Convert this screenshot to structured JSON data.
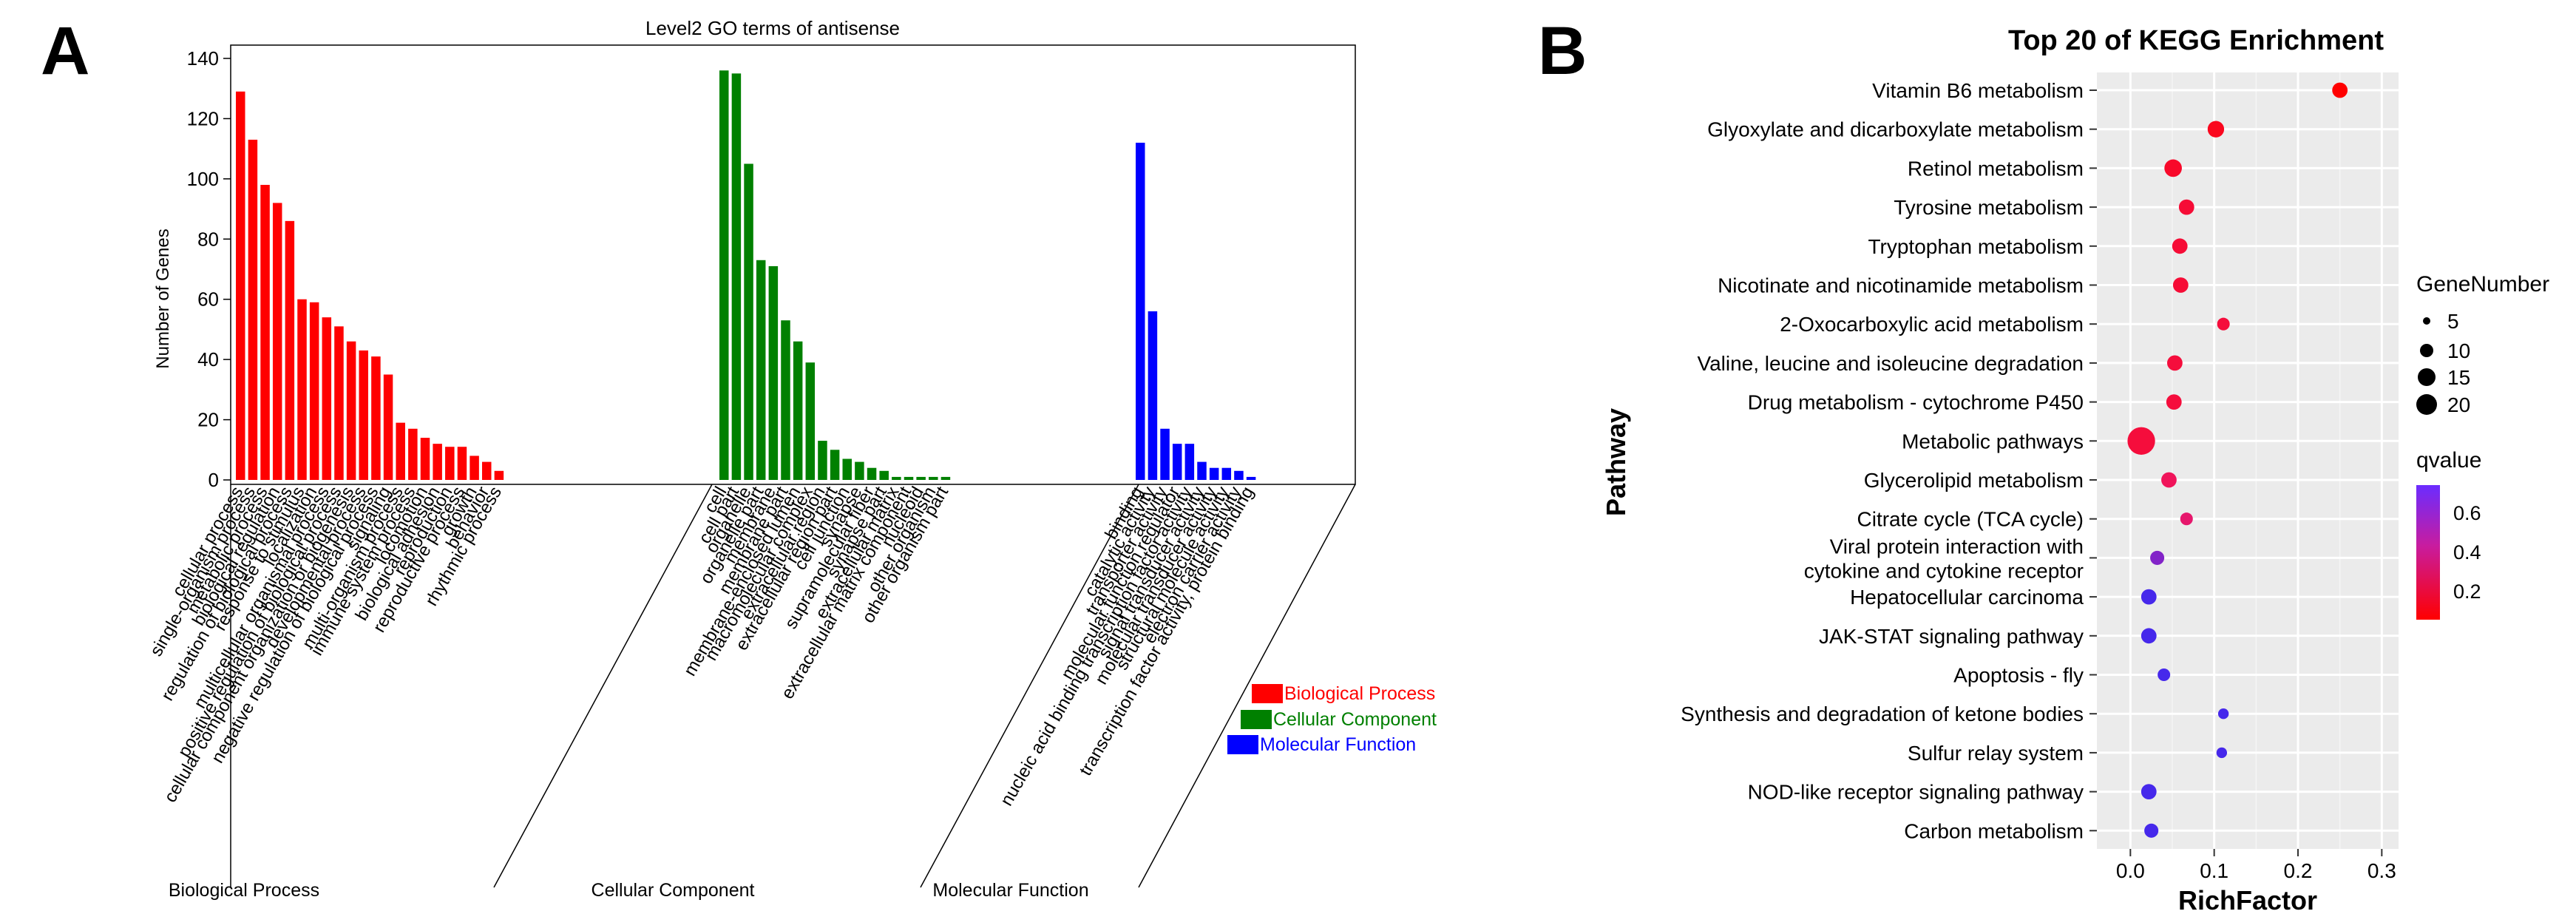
{
  "panel_a": {
    "letter": "A",
    "title": "Level2 GO terms of antisense",
    "ylabel": "Number of Genes",
    "yticks": [
      0,
      20,
      40,
      60,
      80,
      100,
      120,
      140
    ],
    "group_labels": [
      "Biological Process",
      "Cellular Component",
      "Molecular Function"
    ],
    "legend": [
      {
        "label": "Biological Process",
        "color": "#ff0000"
      },
      {
        "label": "Cellular Component",
        "color": "#008000"
      },
      {
        "label": "Molecular Function",
        "color": "#0000ff"
      }
    ]
  },
  "panel_b": {
    "letter": "B",
    "title": "Top 20 of KEGG Enrichment",
    "xlabel": "RichFactor",
    "ylabel": "Pathway",
    "xticks": [
      "0.0",
      "0.1",
      "0.2",
      "0.3"
    ],
    "size_legend_title": "GeneNumber",
    "size_legend": [
      "5",
      "10",
      "15",
      "20"
    ],
    "color_legend_title": "qvalue",
    "color_legend_ticks": [
      "0.6",
      "0.4",
      "0.2"
    ]
  },
  "chart_data": [
    {
      "type": "bar",
      "title": "Level2 GO terms of antisense",
      "ylabel": "Number of Genes",
      "ylim": [
        0,
        140
      ],
      "series": [
        {
          "name": "Biological Process",
          "color": "#ff0000",
          "categories": [
            "cellular process",
            "single-organism process",
            "metabolic process",
            "biological regulation",
            "regulation of biological process",
            "response to stimulus",
            "localization",
            "multicellular organismal process",
            "positive regulation of biological process",
            "cellular component organization or biogenesis",
            "developmental process",
            "negative regulation of biological process",
            "signaling",
            "multi-organism process",
            "immune system process",
            "locomotion",
            "biological adhesion",
            "reproduction",
            "reproductive process",
            "growth",
            "behavior",
            "rhythmic process"
          ],
          "values": [
            129,
            113,
            98,
            92,
            86,
            60,
            59,
            54,
            51,
            46,
            43,
            41,
            35,
            19,
            17,
            14,
            12,
            11,
            11,
            8,
            6,
            3
          ]
        },
        {
          "name": "Cellular Component",
          "color": "#008000",
          "categories": [
            "cell",
            "cell part",
            "organelle",
            "organelle part",
            "membrane",
            "membrane part",
            "membrane-enclosed lumen",
            "macromolecular complex",
            "extracellular region",
            "extracellular region part",
            "cell junction",
            "synapse",
            "supramolecular fiber",
            "synapse part",
            "extracellular matrix",
            "extracellular matrix component",
            "nucleoid",
            "other organism",
            "other organism part"
          ],
          "values": [
            136,
            135,
            105,
            73,
            71,
            53,
            46,
            39,
            13,
            10,
            7,
            6,
            4,
            3,
            1,
            1,
            1,
            1,
            1
          ]
        },
        {
          "name": "Molecular Function",
          "color": "#0000ff",
          "categories": [
            "binding",
            "catalytic activity",
            "transporter activity",
            "molecular function regulator",
            "nucleic acid binding transcription factor activity",
            "signal transducer activity",
            "molecular transducer activity",
            "structural molecule activity",
            "electron carrier activity",
            "transcription factor activity, protein binding"
          ],
          "values": [
            112,
            56,
            17,
            12,
            12,
            6,
            4,
            4,
            3,
            1
          ]
        }
      ]
    },
    {
      "type": "scatter",
      "title": "Top 20 of KEGG Enrichment",
      "xlabel": "RichFactor",
      "ylabel": "Pathway",
      "xlim": [
        -0.04,
        0.32
      ],
      "pathways": [
        {
          "name": "Vitamin B6 metabolism",
          "rich_factor": 0.25,
          "gene_number": 4,
          "qvalue": 0.05
        },
        {
          "name": "Glyoxylate and dicarboxylate metabolism",
          "rich_factor": 0.102,
          "gene_number": 5,
          "qvalue": 0.1
        },
        {
          "name": "Retinol metabolism",
          "rich_factor": 0.051,
          "gene_number": 6,
          "qvalue": 0.12
        },
        {
          "name": "Tyrosine metabolism",
          "rich_factor": 0.067,
          "gene_number": 4,
          "qvalue": 0.14
        },
        {
          "name": "Tryptophan metabolism",
          "rich_factor": 0.059,
          "gene_number": 4,
          "qvalue": 0.14
        },
        {
          "name": "Nicotinate and nicotinamide metabolism",
          "rich_factor": 0.06,
          "gene_number": 4,
          "qvalue": 0.14
        },
        {
          "name": "2-Oxocarboxylic acid metabolism",
          "rich_factor": 0.111,
          "gene_number": 2,
          "qvalue": 0.15
        },
        {
          "name": "Valine, leucine and isoleucine degradation",
          "rich_factor": 0.053,
          "gene_number": 4,
          "qvalue": 0.15
        },
        {
          "name": "Drug metabolism - cytochrome P450",
          "rich_factor": 0.052,
          "gene_number": 4,
          "qvalue": 0.15
        },
        {
          "name": "Metabolic pathways",
          "rich_factor": 0.013,
          "gene_number": 21,
          "qvalue": 0.15
        },
        {
          "name": "Glycerolipid metabolism",
          "rich_factor": 0.046,
          "gene_number": 4,
          "qvalue": 0.2
        },
        {
          "name": "Citrate cycle (TCA cycle)",
          "rich_factor": 0.067,
          "gene_number": 2,
          "qvalue": 0.25
        },
        {
          "name": "Viral protein interaction with cytokine and cytokine receptor",
          "label_lines": [
            "Viral protein interaction with",
            "cytokine and cytokine receptor"
          ],
          "rich_factor": 0.032,
          "gene_number": 3,
          "qvalue": 0.55
        },
        {
          "name": "Hepatocellular carcinoma",
          "rich_factor": 0.022,
          "gene_number": 4,
          "qvalue": 0.68
        },
        {
          "name": "JAK-STAT signaling pathway",
          "rich_factor": 0.022,
          "gene_number": 4,
          "qvalue": 0.68
        },
        {
          "name": "Apoptosis - fly",
          "rich_factor": 0.04,
          "gene_number": 2,
          "qvalue": 0.68
        },
        {
          "name": "Synthesis and degradation of ketone bodies",
          "rich_factor": 0.111,
          "gene_number": 1,
          "qvalue": 0.68
        },
        {
          "name": "Sulfur relay system",
          "rich_factor": 0.109,
          "gene_number": 1,
          "qvalue": 0.68
        },
        {
          "name": "NOD-like receptor signaling pathway",
          "rich_factor": 0.022,
          "gene_number": 4,
          "qvalue": 0.68
        },
        {
          "name": "Carbon metabolism",
          "rich_factor": 0.025,
          "gene_number": 3,
          "qvalue": 0.68
        }
      ]
    }
  ]
}
